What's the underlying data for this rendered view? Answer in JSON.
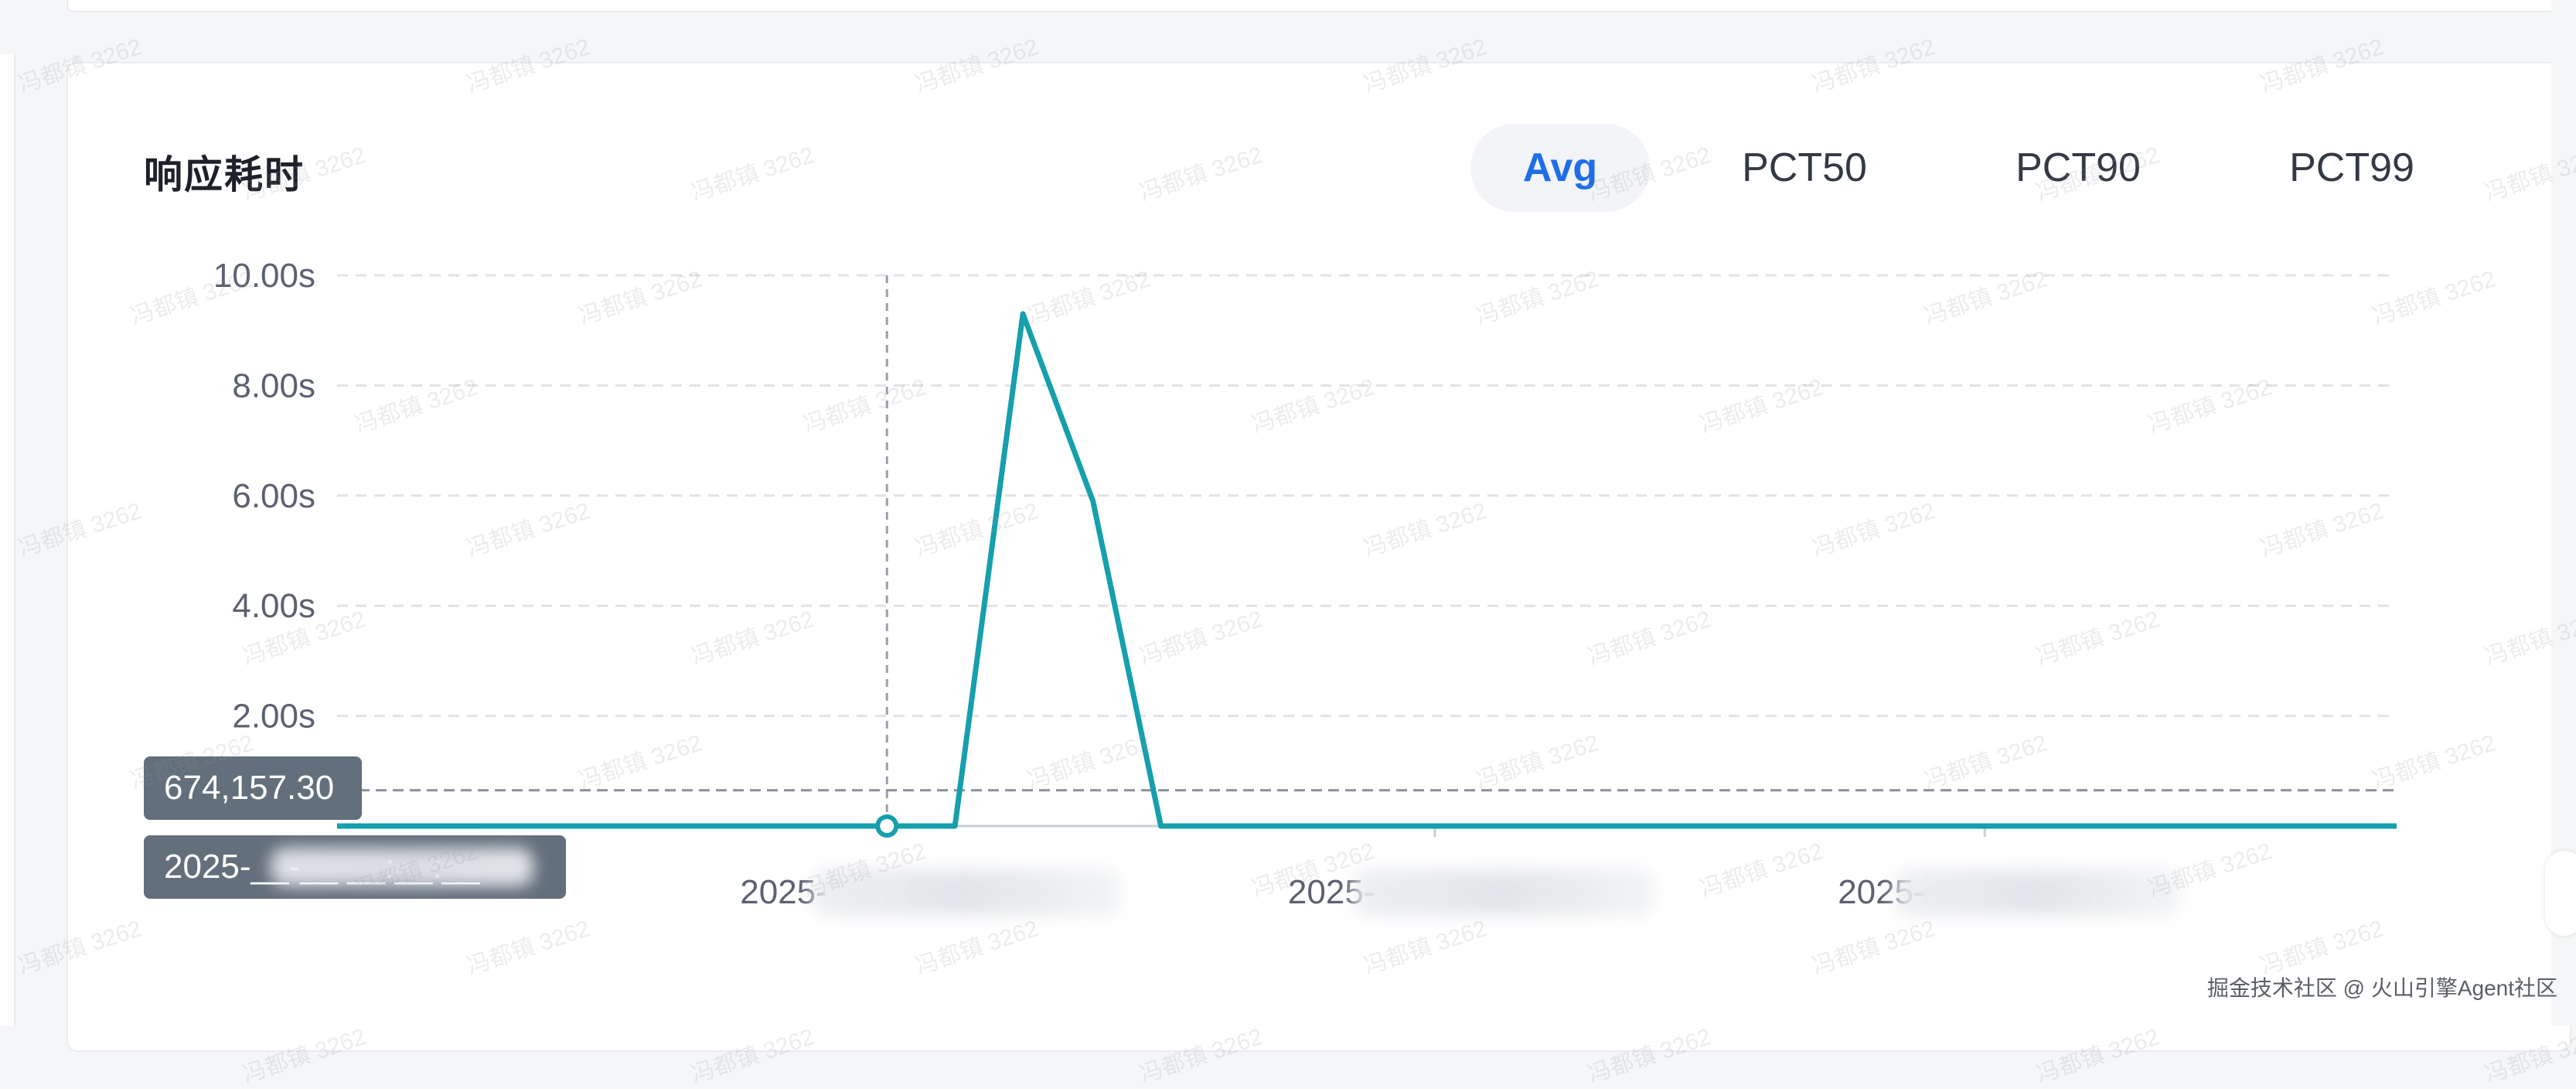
{
  "card": {
    "title": "响应耗时",
    "tabs": [
      {
        "label": "Avg",
        "active": true
      },
      {
        "label": "PCT50",
        "active": false
      },
      {
        "label": "PCT90",
        "active": false
      },
      {
        "label": "PCT99",
        "active": false
      }
    ]
  },
  "tooltip": {
    "value": "674,157.30",
    "time": "2025-__-__ __:__:__"
  },
  "watermark_text": "冯都镇 3262",
  "footer_watermark": "掘金技术社区 @ 火山引擎Agent社区",
  "colors": {
    "line": "#169fad",
    "active_tab": "#1f6ee8",
    "grid": "#dfe2e7",
    "tooltip_bg": "#636f7b"
  },
  "chart_data": {
    "type": "line",
    "title": "响应耗时",
    "xlabel": "",
    "ylabel": "",
    "y_ticks": [
      "10.00s",
      "8.00s",
      "6.00s",
      "4.00s",
      "2.00s"
    ],
    "y_unit": "s",
    "ylim": [
      0,
      10
    ],
    "x_ticks": [
      "2025-",
      "2025-",
      "2025-"
    ],
    "grid": true,
    "legend": "none",
    "series": [
      {
        "values": [
          {
            "x": 0.0,
            "y": 0
          },
          {
            "x": 2.67,
            "y": 0
          },
          {
            "x": 3.0,
            "y": 0
          },
          {
            "x": 3.33,
            "y": 9.3
          },
          {
            "x": 3.67,
            "y": 5.9
          },
          {
            "x": 4.0,
            "y": 0
          },
          {
            "x": 10.0,
            "y": 0
          }
        ]
      }
    ],
    "x_range": [
      0,
      10
    ],
    "hover": {
      "x": 2.67,
      "y": 0,
      "crosshair_y": 0.65
    }
  }
}
